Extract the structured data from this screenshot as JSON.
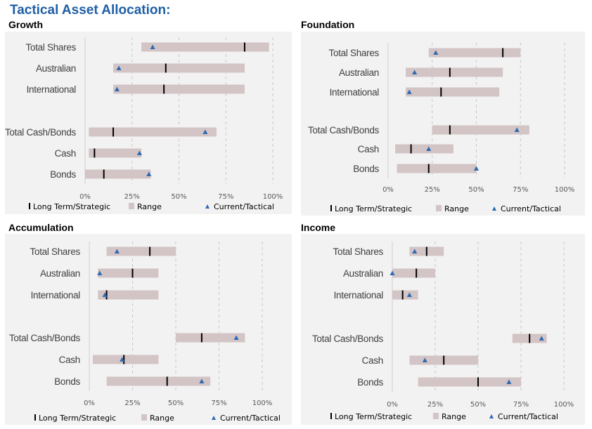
{
  "page_title": "Tactical Asset Allocation:",
  "colors": {
    "range": "#d3c4c5",
    "strategic": "#000000",
    "tactical": "#2e6ab3",
    "grid": "#c8c8c8",
    "title": "#1f5fa6",
    "panel_bg": "#f2f2f2"
  },
  "chart_data": [
    {
      "type": "range-bar",
      "title": "Growth",
      "categories": [
        "Total Shares",
        "Australian",
        "International",
        "Total Cash/Bonds",
        "Cash",
        "Bonds"
      ],
      "series": [
        {
          "name": "Long Term/Strategic",
          "values": [
            85,
            43,
            42,
            15,
            5,
            10
          ]
        },
        {
          "name": "Range",
          "ranges": [
            [
              30,
              98
            ],
            [
              15,
              85
            ],
            [
              15,
              85
            ],
            [
              2,
              70
            ],
            [
              2,
              30
            ],
            [
              0,
              35
            ]
          ]
        },
        {
          "name": "Current/Tactical",
          "values": [
            36,
            18,
            17,
            64,
            29,
            34
          ]
        }
      ],
      "xlim": [
        0,
        100
      ],
      "xticks": [
        "0%",
        "25%",
        "50%",
        "75%",
        "100%"
      ],
      "grid": "vertical-dashed",
      "legend": "bottom"
    },
    {
      "type": "range-bar",
      "title": "Foundation",
      "categories": [
        "Total Shares",
        "Australian",
        "International",
        "Total Cash/Bonds",
        "Cash",
        "Bonds"
      ],
      "series": [
        {
          "name": "Long Term/Strategic",
          "values": [
            65,
            35,
            30,
            35,
            13,
            23
          ]
        },
        {
          "name": "Range",
          "ranges": [
            [
              23,
              75
            ],
            [
              10,
              65
            ],
            [
              10,
              63
            ],
            [
              25,
              80
            ],
            [
              4,
              37
            ],
            [
              5,
              50
            ]
          ]
        },
        {
          "name": "Current/Tactical",
          "values": [
            27,
            15,
            12,
            73,
            23,
            50
          ]
        }
      ],
      "xlim": [
        0,
        100
      ],
      "xticks": [
        "0%",
        "25%",
        "50%",
        "75%",
        "100%"
      ],
      "grid": "vertical-dashed",
      "legend": "bottom"
    },
    {
      "type": "range-bar",
      "title": "Accumulation",
      "categories": [
        "Total Shares",
        "Australian",
        "International",
        "Total Cash/Bonds",
        "Cash",
        "Bonds"
      ],
      "series": [
        {
          "name": "Long Term/Strategic",
          "values": [
            35,
            25,
            10,
            65,
            20,
            45
          ]
        },
        {
          "name": "Range",
          "ranges": [
            [
              10,
              50
            ],
            [
              5,
              40
            ],
            [
              5,
              40
            ],
            [
              50,
              90
            ],
            [
              2,
              40
            ],
            [
              10,
              70
            ]
          ]
        },
        {
          "name": "Current/Tactical",
          "values": [
            16,
            6,
            9,
            85,
            19,
            65
          ]
        }
      ],
      "xlim": [
        0,
        100
      ],
      "xticks": [
        "0%",
        "25%",
        "50%",
        "75%",
        "100%"
      ],
      "grid": "vertical-dashed",
      "legend": "bottom"
    },
    {
      "type": "range-bar",
      "title": "Income",
      "categories": [
        "Total Shares",
        "Australian",
        "International",
        "Total Cash/Bonds",
        "Cash",
        "Bonds"
      ],
      "series": [
        {
          "name": "Long Term/Strategic",
          "values": [
            20,
            14,
            6,
            80,
            30,
            50
          ]
        },
        {
          "name": "Range",
          "ranges": [
            [
              10,
              30
            ],
            [
              0,
              25
            ],
            [
              0,
              15
            ],
            [
              70,
              90
            ],
            [
              10,
              50
            ],
            [
              15,
              75
            ]
          ]
        },
        {
          "name": "Current/Tactical",
          "values": [
            13,
            0,
            10,
            87,
            19,
            68
          ]
        }
      ],
      "xlim": [
        0,
        100
      ],
      "xticks": [
        "0%",
        "25%",
        "50%",
        "75%",
        "100%"
      ],
      "grid": "vertical-dashed",
      "legend": "bottom"
    }
  ]
}
